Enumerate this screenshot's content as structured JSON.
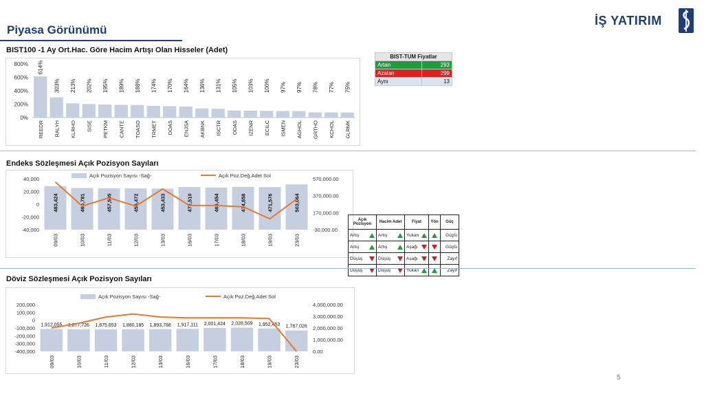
{
  "header": {
    "title": "Piyasa Görünümü",
    "logo_text": "İŞ YATIRIM"
  },
  "page_number": "5",
  "colors": {
    "bar": "#c5cfe0",
    "line": "#e8782d",
    "brand": "#1f3d7a",
    "up": "#1e9e3a",
    "down": "#d11a1a"
  },
  "section1": {
    "title": "BIST100 -1 Ay Ort.Hac. Göre Hacim Artışı Olan Hisseler (Adet)"
  },
  "section2": {
    "title": "Endeks Sözleşmesi Açık Pozisyon Sayıları"
  },
  "section3": {
    "title": "Döviz Sözleşmesi Açık Pozisyon Sayıları"
  },
  "stats": {
    "title": "BIST-TUM Fiyatlar",
    "rows": [
      {
        "label": "Artan",
        "value": "293",
        "color": "#1e9e3a"
      },
      {
        "label": "Azalan",
        "value": "299",
        "color": "#e01f1f"
      },
      {
        "label": "Aynı",
        "value": "13",
        "color": "#dde2ee"
      }
    ]
  },
  "signal_table": {
    "headers": [
      "Açık Pozisyon",
      "Hacim Adet",
      "Fiyat",
      "Yön",
      "Güç"
    ],
    "rows": [
      {
        "poz": "Artış",
        "poz_dir": "up",
        "hacim": "Artış",
        "hacim_dir": "up",
        "fiyat": "Yukarı",
        "fiyat_dir": "up",
        "yon": "up",
        "guc": "Güçlü"
      },
      {
        "poz": "Artış",
        "poz_dir": "up",
        "hacim": "Artış",
        "hacim_dir": "up",
        "fiyat": "Aşağı",
        "fiyat_dir": "down",
        "yon": "down",
        "guc": "Güçlü"
      },
      {
        "poz": "Düşüş",
        "poz_dir": "down",
        "hacim": "Düşüş",
        "hacim_dir": "down",
        "fiyat": "Aşağı",
        "fiyat_dir": "down",
        "yon": "down",
        "guc": "Zayıf"
      },
      {
        "poz": "Düşüş",
        "poz_dir": "down",
        "hacim": "Düşüş",
        "hacim_dir": "down",
        "fiyat": "Yukarı",
        "fiyat_dir": "up",
        "yon": "up",
        "guc": "Zayıf"
      }
    ]
  },
  "chart_data": [
    {
      "type": "bar",
      "categories": [
        "REEDR",
        "RALYH",
        "KLRHO",
        "SISE",
        "PETKM",
        "CANTE",
        "TOASO",
        "TRMET",
        "DOAS",
        "ENJSA",
        "AKBNK",
        "ISCTR",
        "ODAS",
        "IZENR",
        "ECILC",
        "ISMEN",
        "AGHOL",
        "GRTHO",
        "KCHOL",
        "GLRMK"
      ],
      "values": [
        614,
        303,
        213,
        202,
        195,
        189,
        188,
        174,
        170,
        164,
        136,
        131,
        105,
        103,
        100,
        97,
        97,
        78,
        77,
        75
      ],
      "value_labels": [
        "614%",
        "303%",
        "213%",
        "202%",
        "195%",
        "189%",
        "188%",
        "174%",
        "170%",
        "164%",
        "136%",
        "131%",
        "105%",
        "103%",
        "100%",
        "97%",
        "97%",
        "78%",
        "77%",
        "75%"
      ],
      "ylim": [
        0,
        800
      ],
      "y_ticks": [
        0,
        200,
        400,
        600,
        800
      ],
      "y_tick_labels": [
        "0%",
        "200%",
        "400%",
        "600%",
        "800%"
      ],
      "grid": false
    },
    {
      "type": "bar+line",
      "categories": [
        "09/03",
        "10/03",
        "11/03",
        "12/03",
        "13/03",
        "16/03",
        "17/03",
        "18/03",
        "19/03",
        "23/03"
      ],
      "series": [
        {
          "name": "Açık Pozisyon Sayısı -Sağ-",
          "type": "bar",
          "axis": "right",
          "values": [
            483424,
            460781,
            457505,
            455472,
            453433,
            472510,
            466454,
            474858,
            471576,
            503064
          ],
          "labels": [
            "483,424",
            "460,781",
            "457,505",
            "455,472",
            "453,433",
            "472,510",
            "466,454",
            "474,858",
            "471,576",
            "503,064"
          ]
        },
        {
          "name": "Açık Poz.Değ.Adet Sol",
          "type": "line",
          "axis": "left",
          "values": [
            35000,
            -3000,
            10000,
            -3000,
            24000,
            -2000,
            -2000,
            -4000,
            -23000,
            8000
          ]
        }
      ],
      "left_axis": {
        "range": [
          -40000,
          40000
        ],
        "ticks": [
          -40000,
          -20000,
          0,
          20000,
          40000
        ],
        "tick_labels": [
          "-40,000",
          "-20,000",
          "0",
          "20,000",
          "40,000"
        ]
      },
      "right_axis": {
        "range": [
          -30000,
          570000
        ],
        "ticks": [
          -30000,
          170000,
          370000,
          570000
        ],
        "tick_labels": [
          "-30,000.00",
          "170,000.00",
          "370,000.00",
          "570,000.00"
        ]
      },
      "legend": "top"
    },
    {
      "type": "bar+line",
      "categories": [
        "09/03",
        "10/03",
        "11/03",
        "12/03",
        "13/03",
        "16/03",
        "17/03",
        "18/03",
        "19/03",
        "23/03"
      ],
      "series": [
        {
          "name": "Açık Pozisyon Sayısı -Sağ-",
          "type": "bar",
          "axis": "right",
          "values": [
            1912055,
            1877726,
            1875653,
            1880185,
            1893788,
            1917111,
            2001424,
            2028509,
            1952453,
            1787026
          ],
          "labels": [
            "1,912,055",
            "1,877,726",
            "1,875,653",
            "1,880,185",
            "1,893,788",
            "1,917,111",
            "2,001,424",
            "2,028,509",
            "1,952,453",
            "1,787,026"
          ]
        },
        {
          "name": "Açık Poz.Değ.Adet Sol",
          "type": "line",
          "axis": "left",
          "values": [
            -100000,
            -40000,
            40000,
            80000,
            40000,
            30000,
            30000,
            30000,
            20000,
            -400000
          ]
        }
      ],
      "left_axis": {
        "range": [
          -400000,
          200000
        ],
        "ticks": [
          -400000,
          -300000,
          -200000,
          -100000,
          0,
          100000,
          200000
        ],
        "tick_labels": [
          "-400,000",
          "-300,000",
          "-200,000",
          "-100,000",
          "0",
          "100,000",
          "200,000"
        ]
      },
      "right_axis": {
        "range": [
          0,
          4000000
        ],
        "ticks": [
          0,
          1000000,
          2000000,
          3000000,
          4000000
        ],
        "tick_labels": [
          "0.00",
          "1,000,000.00",
          "2,000,000.00",
          "3,000,000.00",
          "4,000,000.00"
        ]
      },
      "legend": "top"
    }
  ]
}
